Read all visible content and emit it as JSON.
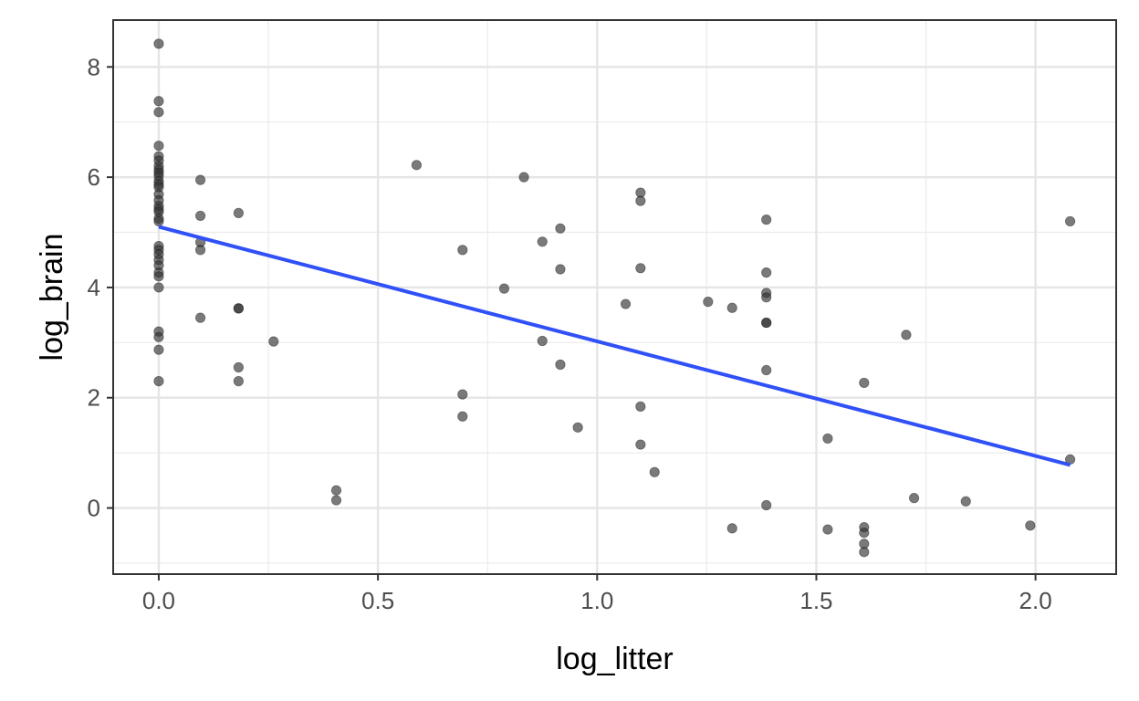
{
  "chart_data": {
    "type": "scatter",
    "xlabel": "log_litter",
    "ylabel": "log_brain",
    "xlim": [
      -0.104,
      2.184
    ],
    "ylim": [
      -1.2,
      8.85
    ],
    "x_ticks": [
      0.0,
      0.5,
      1.0,
      1.5,
      2.0
    ],
    "x_tick_labels": [
      "0.0",
      "0.5",
      "1.0",
      "1.5",
      "2.0"
    ],
    "y_ticks": [
      0,
      2,
      4,
      6,
      8
    ],
    "y_tick_labels": [
      "0",
      "2",
      "4",
      "6",
      "8"
    ],
    "grid": true,
    "point_color": "#333333",
    "line_color": "#3050f8",
    "points": [
      [
        0.0,
        8.42
      ],
      [
        0.0,
        7.38
      ],
      [
        0.0,
        7.18
      ],
      [
        0.0,
        6.57
      ],
      [
        0.0,
        6.38
      ],
      [
        0.0,
        6.3
      ],
      [
        0.0,
        6.2
      ],
      [
        0.0,
        6.13
      ],
      [
        0.0,
        6.08
      ],
      [
        0.0,
        6.02
      ],
      [
        0.0,
        5.93
      ],
      [
        0.0,
        5.87
      ],
      [
        0.0,
        5.82
      ],
      [
        0.0,
        5.69
      ],
      [
        0.0,
        5.58
      ],
      [
        0.0,
        5.48
      ],
      [
        0.0,
        5.42
      ],
      [
        0.0,
        5.37
      ],
      [
        0.0,
        5.25
      ],
      [
        0.0,
        5.2
      ],
      [
        0.0,
        4.75
      ],
      [
        0.0,
        4.68
      ],
      [
        0.0,
        4.6
      ],
      [
        0.0,
        4.5
      ],
      [
        0.0,
        4.4
      ],
      [
        0.0,
        4.27
      ],
      [
        0.0,
        4.2
      ],
      [
        0.0,
        4.0
      ],
      [
        0.0,
        3.2
      ],
      [
        0.0,
        3.1
      ],
      [
        0.0,
        2.87
      ],
      [
        0.0,
        2.3
      ],
      [
        0.095,
        5.95
      ],
      [
        0.095,
        5.3
      ],
      [
        0.095,
        4.82
      ],
      [
        0.095,
        4.68
      ],
      [
        0.095,
        3.45
      ],
      [
        0.182,
        5.35
      ],
      [
        0.182,
        3.62
      ],
      [
        0.182,
        3.62
      ],
      [
        0.182,
        2.55
      ],
      [
        0.182,
        2.3
      ],
      [
        0.262,
        3.02
      ],
      [
        0.405,
        0.32
      ],
      [
        0.405,
        0.14
      ],
      [
        0.588,
        6.22
      ],
      [
        0.693,
        4.68
      ],
      [
        0.693,
        2.06
      ],
      [
        0.693,
        1.66
      ],
      [
        0.788,
        3.98
      ],
      [
        0.833,
        6.0
      ],
      [
        0.875,
        4.83
      ],
      [
        0.875,
        3.03
      ],
      [
        0.916,
        5.07
      ],
      [
        0.916,
        4.33
      ],
      [
        0.916,
        2.6
      ],
      [
        0.956,
        1.46
      ],
      [
        1.065,
        3.7
      ],
      [
        1.099,
        5.72
      ],
      [
        1.099,
        5.57
      ],
      [
        1.099,
        4.35
      ],
      [
        1.099,
        1.84
      ],
      [
        1.099,
        1.15
      ],
      [
        1.131,
        0.65
      ],
      [
        1.253,
        3.74
      ],
      [
        1.308,
        3.63
      ],
      [
        1.308,
        -0.37
      ],
      [
        1.386,
        5.23
      ],
      [
        1.386,
        4.27
      ],
      [
        1.386,
        3.9
      ],
      [
        1.386,
        3.82
      ],
      [
        1.386,
        3.36
      ],
      [
        1.386,
        3.36
      ],
      [
        1.386,
        2.5
      ],
      [
        1.386,
        0.05
      ],
      [
        1.526,
        1.26
      ],
      [
        1.526,
        -0.39
      ],
      [
        1.609,
        2.27
      ],
      [
        1.609,
        -0.35
      ],
      [
        1.609,
        -0.45
      ],
      [
        1.609,
        -0.65
      ],
      [
        1.609,
        -0.8
      ],
      [
        1.705,
        3.14
      ],
      [
        1.723,
        0.18
      ],
      [
        1.841,
        0.12
      ],
      [
        1.988,
        -0.32
      ],
      [
        2.079,
        5.2
      ],
      [
        2.079,
        0.88
      ]
    ],
    "fit_line": {
      "x": [
        0.0,
        2.079
      ],
      "y": [
        5.1,
        0.78
      ]
    }
  }
}
